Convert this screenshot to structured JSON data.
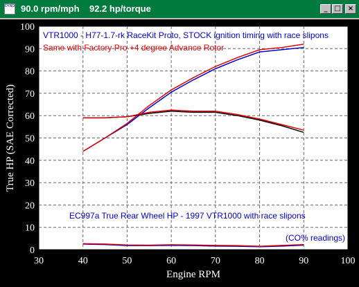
{
  "window": {
    "title": "90.0 rpm/mph    92.2 hp/torque",
    "icon_label": "DYNO",
    "icons": [
      "app-icon",
      "minimize-icon",
      "maximize-icon",
      "close-icon"
    ],
    "minimize_glyph": "_",
    "maximize_glyph": "□",
    "close_glyph": "×"
  },
  "colors": {
    "window_bg": "#000000",
    "plot_bg": "#ffffff",
    "title_bg": "#007a3d",
    "blue": "#0000cc",
    "red": "#dd0000",
    "black": "#000000"
  },
  "chart_data": {
    "type": "line",
    "xlabel": "Engine RPM",
    "ylabel": "True HP (SAE Corrected)",
    "xlim": [
      30,
      100
    ],
    "ylim": [
      0,
      100
    ],
    "xticks": [
      30,
      40,
      50,
      60,
      70,
      80,
      90,
      100
    ],
    "yticks": [
      0,
      10,
      20,
      30,
      40,
      50,
      60,
      70,
      80,
      90,
      100
    ],
    "grid": true,
    "annotations": {
      "line1": "VTR1000 - H77-1.7-rk RaceKit Proto, STOCK ignition timing  with race slipons",
      "line2": "Same with Factory Pro +4 degree Advance Rotor",
      "line3": "EC997a True Rear Wheel HP - 1997 VTR1000 with race slipons",
      "line4": "(CO% readings)"
    },
    "series": [
      {
        "color": "#0000cc",
        "x": [
          40,
          45,
          50,
          55,
          60,
          65,
          70,
          75,
          80,
          85,
          90
        ],
        "y": [
          44,
          50,
          56,
          63.5,
          70.5,
          76,
          81,
          85,
          88.5,
          89.5,
          90.5
        ]
      },
      {
        "color": "#dd0000",
        "x": [
          40,
          45,
          50,
          55,
          60,
          65,
          70,
          75,
          80,
          85,
          90
        ],
        "y": [
          44,
          50,
          56.5,
          64.5,
          71.5,
          77,
          82,
          86,
          89.5,
          90.5,
          92
        ]
      },
      {
        "color": "#000000",
        "x": [
          40,
          45,
          50,
          55,
          60,
          65,
          70,
          75,
          80,
          85,
          90
        ],
        "y": [
          59,
          59,
          59.5,
          61,
          62,
          61.5,
          61.5,
          60,
          58,
          55.5,
          52.5
        ]
      },
      {
        "color": "#dd0000",
        "x": [
          40,
          45,
          50,
          55,
          60,
          65,
          70,
          75,
          80,
          85,
          90
        ],
        "y": [
          59,
          59,
          59.5,
          61.5,
          62.5,
          62,
          62,
          60.5,
          58.5,
          56,
          53.5
        ]
      },
      {
        "color": "#0000cc",
        "x": [
          40,
          45,
          50,
          55,
          60,
          65,
          70,
          75,
          80,
          85,
          90
        ],
        "y": [
          2.5,
          2.3,
          1.8,
          1.8,
          1.9,
          1.8,
          1.6,
          1.5,
          1.3,
          1.6,
          2.0
        ]
      },
      {
        "color": "#dd0000",
        "x": [
          40,
          45,
          50,
          55,
          60,
          65,
          70,
          75,
          80,
          85,
          90
        ],
        "y": [
          2.7,
          2.5,
          2.1,
          2.0,
          2.2,
          2.1,
          1.9,
          1.8,
          1.5,
          1.9,
          2.3
        ]
      }
    ]
  }
}
